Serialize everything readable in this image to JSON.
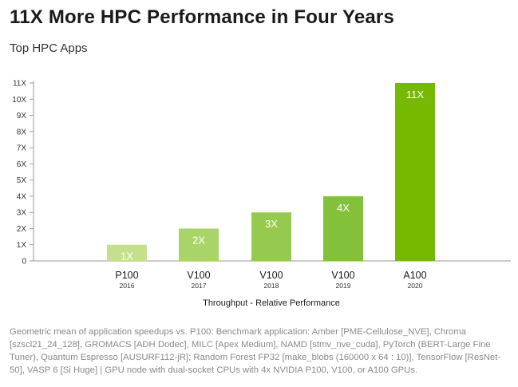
{
  "title": "11X More HPC Performance in Four Years",
  "subtitle": "Top HPC Apps",
  "footnote": "Geometric mean of application speedups vs. P100: Benchmark application: Amber [PME-Cellulose_NVE], Chroma [szscl21_24_128], GROMACS [ADH Dodec], MILC [Apex Medium], NAMD [stmv_nve_cuda], PyTorch (BERT-Large Fine Tuner), Quantum Espresso [AUSURF112-jR]; Random Forest FP32 [make_blobs (160000 x 64 : 10)], TensorFlow [ResNet-50], VASP 6 [Si Huge] | GPU node with dual-socket CPUs with 4x NVIDIA P100, V100, or A100 GPUs.",
  "colors": {
    "bars": [
      "#c4e08f",
      "#a9d46a",
      "#96ca4e",
      "#84c13a",
      "#76b900"
    ],
    "axis": "#999999",
    "tick_text": "#333333"
  },
  "chart_data": {
    "type": "bar",
    "categories": [
      "P100",
      "V100",
      "V100",
      "V100",
      "A100"
    ],
    "years": [
      "2016",
      "2017",
      "2018",
      "2019",
      "2020"
    ],
    "values": [
      1,
      2,
      3,
      4,
      11
    ],
    "data_labels": [
      "1X",
      "2X",
      "3X",
      "4X",
      "11X"
    ],
    "title": "",
    "xlabel": "Throughput - Relative Performance",
    "ylabel": "",
    "ylim": [
      0,
      11
    ],
    "y_ticks": [
      0,
      1,
      2,
      3,
      4,
      5,
      6,
      7,
      8,
      9,
      10,
      11
    ],
    "y_tick_labels": [
      "0",
      "1X",
      "2X",
      "3X",
      "4X",
      "5X",
      "6X",
      "7X",
      "8X",
      "9X",
      "10X",
      "11X"
    ],
    "grid": false,
    "legend": "none"
  }
}
